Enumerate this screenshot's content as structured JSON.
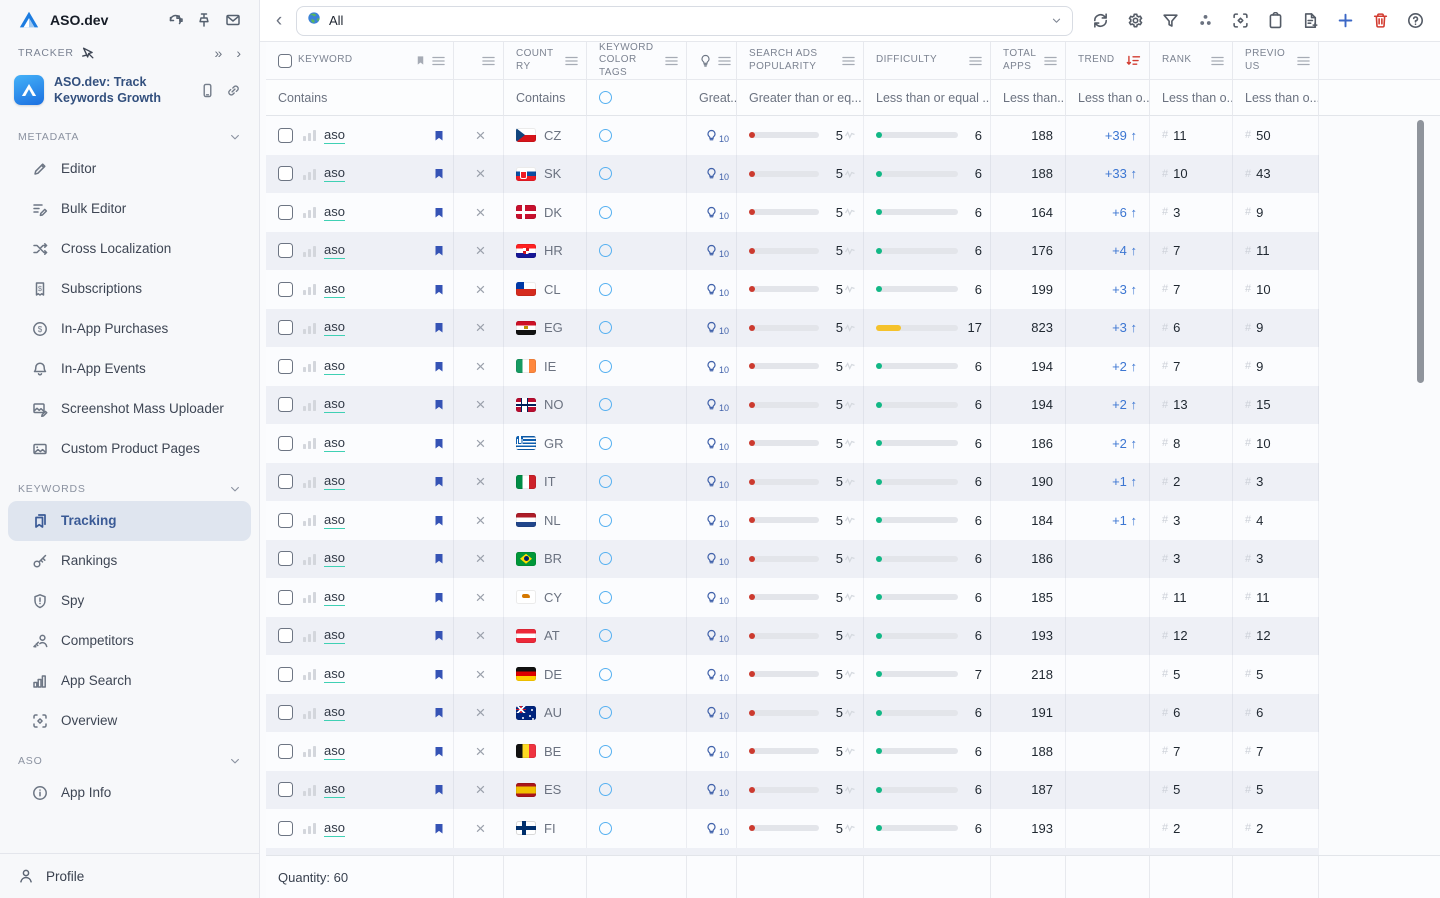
{
  "app": {
    "title": "ASO.dev"
  },
  "sidebar": {
    "tracker_label": "TRACKER",
    "header_icons": [
      "compare-icon",
      "pin-icon",
      "mail-icon"
    ],
    "app_card": {
      "title": "ASO.dev: Track Keywords Growth",
      "icons": [
        "phone-icon",
        "link-icon"
      ]
    },
    "sections": [
      {
        "label": "METADATA",
        "items": [
          {
            "label": "Editor",
            "icon": "pencil-icon"
          },
          {
            "label": "Bulk Editor",
            "icon": "bulk-edit-icon"
          },
          {
            "label": "Cross Localization",
            "icon": "shuffle-icon"
          },
          {
            "label": "Subscriptions",
            "icon": "receipt-icon"
          },
          {
            "label": "In-App Purchases",
            "icon": "dollar-circle-icon"
          },
          {
            "label": "In-App Events",
            "icon": "bell-icon"
          },
          {
            "label": "Screenshot Mass Uploader",
            "icon": "screenshot-upload-icon"
          },
          {
            "label": "Custom Product Pages",
            "icon": "image-icon"
          }
        ]
      },
      {
        "label": "KEYWORDS",
        "items": [
          {
            "label": "Tracking",
            "icon": "bookmarks-icon",
            "active": true
          },
          {
            "label": "Rankings",
            "icon": "key-icon"
          },
          {
            "label": "Spy",
            "icon": "shield-icon"
          },
          {
            "label": "Competitors",
            "icon": "competitors-icon"
          },
          {
            "label": "App Search",
            "icon": "bar-chart-icon"
          },
          {
            "label": "Overview",
            "icon": "scan-icon"
          }
        ]
      },
      {
        "label": "ASO",
        "items": [
          {
            "label": "App Info",
            "icon": "info-icon"
          }
        ]
      }
    ],
    "profile_label": "Profile"
  },
  "toolbar": {
    "scope": {
      "icon": "globe-icon",
      "value": "All"
    },
    "action_icons": [
      "refresh-icon",
      "settings-icon",
      "filter-icon",
      "color-tags-icon",
      "scan-center-icon",
      "clipboard-icon",
      "add-document-icon",
      "add-icon",
      "delete-icon",
      "help-icon"
    ]
  },
  "table": {
    "columns": [
      {
        "label": "KEYWORD",
        "filter": "Contains"
      },
      {
        "label": "",
        "filter": ""
      },
      {
        "label": "COUNTRY",
        "filter": "Contains"
      },
      {
        "label": "KEYWORD COLOR TAGS",
        "filter": ""
      },
      {
        "label": "",
        "filter": "Great...",
        "icon": "lightbulb-icon"
      },
      {
        "label": "SEARCH ADS POPULARITY",
        "filter": "Greater than or eq..."
      },
      {
        "label": "DIFFICULTY",
        "filter": "Less than or equal ..."
      },
      {
        "label": "TOTAL APPS",
        "filter": "Less than..."
      },
      {
        "label": "TREND",
        "filter": "Less than o...",
        "sorted": "desc"
      },
      {
        "label": "RANK",
        "filter": "Less than o..."
      },
      {
        "label": "PREVIOUS",
        "filter": "Less than o..."
      }
    ],
    "rows": [
      {
        "keyword": "aso",
        "country": "CZ",
        "bulb": "10",
        "popularity": 5,
        "difficulty": 6,
        "total_apps": 188,
        "trend": "+39",
        "rank": 11,
        "previous": 50
      },
      {
        "keyword": "aso",
        "country": "SK",
        "bulb": "10",
        "popularity": 5,
        "difficulty": 6,
        "total_apps": 188,
        "trend": "+33",
        "rank": 10,
        "previous": 43
      },
      {
        "keyword": "aso",
        "country": "DK",
        "bulb": "10",
        "popularity": 5,
        "difficulty": 6,
        "total_apps": 164,
        "trend": "+6",
        "rank": 3,
        "previous": 9
      },
      {
        "keyword": "aso",
        "country": "HR",
        "bulb": "10",
        "popularity": 5,
        "difficulty": 6,
        "total_apps": 176,
        "trend": "+4",
        "rank": 7,
        "previous": 11
      },
      {
        "keyword": "aso",
        "country": "CL",
        "bulb": "10",
        "popularity": 5,
        "difficulty": 6,
        "total_apps": 199,
        "trend": "+3",
        "rank": 7,
        "previous": 10
      },
      {
        "keyword": "aso",
        "country": "EG",
        "bulb": "10",
        "popularity": 5,
        "difficulty": 17,
        "total_apps": 823,
        "trend": "+3",
        "rank": 6,
        "previous": 9
      },
      {
        "keyword": "aso",
        "country": "IE",
        "bulb": "10",
        "popularity": 5,
        "difficulty": 6,
        "total_apps": 194,
        "trend": "+2",
        "rank": 7,
        "previous": 9
      },
      {
        "keyword": "aso",
        "country": "NO",
        "bulb": "10",
        "popularity": 5,
        "difficulty": 6,
        "total_apps": 194,
        "trend": "+2",
        "rank": 13,
        "previous": 15
      },
      {
        "keyword": "aso",
        "country": "GR",
        "bulb": "10",
        "popularity": 5,
        "difficulty": 6,
        "total_apps": 186,
        "trend": "+2",
        "rank": 8,
        "previous": 10
      },
      {
        "keyword": "aso",
        "country": "IT",
        "bulb": "10",
        "popularity": 5,
        "difficulty": 6,
        "total_apps": 190,
        "trend": "+1",
        "rank": 2,
        "previous": 3
      },
      {
        "keyword": "aso",
        "country": "NL",
        "bulb": "10",
        "popularity": 5,
        "difficulty": 6,
        "total_apps": 184,
        "trend": "+1",
        "rank": 3,
        "previous": 4
      },
      {
        "keyword": "aso",
        "country": "BR",
        "bulb": "10",
        "popularity": 5,
        "difficulty": 6,
        "total_apps": 186,
        "trend": "",
        "rank": 3,
        "previous": 3
      },
      {
        "keyword": "aso",
        "country": "CY",
        "bulb": "10",
        "popularity": 5,
        "difficulty": 6,
        "total_apps": 185,
        "trend": "",
        "rank": 11,
        "previous": 11
      },
      {
        "keyword": "aso",
        "country": "AT",
        "bulb": "10",
        "popularity": 5,
        "difficulty": 6,
        "total_apps": 193,
        "trend": "",
        "rank": 12,
        "previous": 12
      },
      {
        "keyword": "aso",
        "country": "DE",
        "bulb": "10",
        "popularity": 5,
        "difficulty": 7,
        "total_apps": 218,
        "trend": "",
        "rank": 5,
        "previous": 5
      },
      {
        "keyword": "aso",
        "country": "AU",
        "bulb": "10",
        "popularity": 5,
        "difficulty": 6,
        "total_apps": 191,
        "trend": "",
        "rank": 6,
        "previous": 6
      },
      {
        "keyword": "aso",
        "country": "BE",
        "bulb": "10",
        "popularity": 5,
        "difficulty": 6,
        "total_apps": 188,
        "trend": "",
        "rank": 7,
        "previous": 7
      },
      {
        "keyword": "aso",
        "country": "ES",
        "bulb": "10",
        "popularity": 5,
        "difficulty": 6,
        "total_apps": 187,
        "trend": "",
        "rank": 5,
        "previous": 5
      },
      {
        "keyword": "aso",
        "country": "FI",
        "bulb": "10",
        "popularity": 5,
        "difficulty": 6,
        "total_apps": 193,
        "trend": "",
        "rank": 2,
        "previous": 2
      }
    ],
    "quantity_label": "Quantity: 60"
  },
  "colors": {
    "accent_blue": "#3b67c6",
    "trend_blue": "#3c76d2",
    "bookmark_blue": "#3553b5",
    "danger_red": "#d23b30",
    "popularity_red": "#cc3a2f",
    "difficulty_teal": "#12b886",
    "difficulty_yellow": "#f5c22b",
    "keyword_underline": "#3fd0b4",
    "active_item_bg": "#dfe5ef",
    "active_item_text": "#3a5a96"
  }
}
